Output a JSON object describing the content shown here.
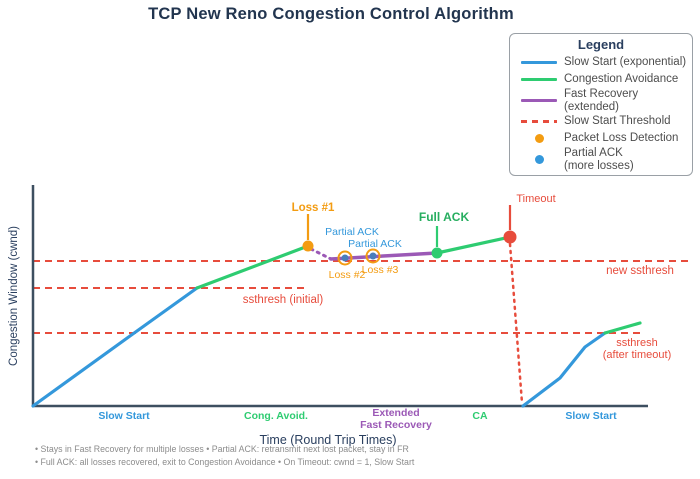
{
  "page": {
    "title": "TCP New Reno Congestion Control Algorithm"
  },
  "legend": {
    "title": "Legend",
    "items": [
      {
        "label": "Slow Start (exponential)",
        "swatch": "line",
        "color": "#3498db"
      },
      {
        "label": "Congestion Avoidance",
        "swatch": "line",
        "color": "#2ecc71"
      },
      {
        "label": "Fast Recovery (extended)",
        "swatch": "line",
        "color": "#9b59b6"
      },
      {
        "label": "Slow Start Threshold",
        "swatch": "dash",
        "color": "#e74c3c"
      },
      {
        "label": "Packet Loss Detection",
        "swatch": "dot",
        "color": "#f39c12"
      },
      {
        "label": "Partial ACK\n(more losses)",
        "swatch": "dot",
        "color": "#3498db"
      }
    ]
  },
  "footnotes": [
    "• Stays in Fast Recovery for multiple losses • Partial ACK: retransmit next lost packet, stay in FR",
    "• Full ACK: all losses recovered, exit to Congestion Avoidance • On Timeout: cwnd = 1, Slow Start"
  ],
  "chart_data": {
    "type": "line",
    "title": "TCP New Reno Congestion Control Algorithm",
    "xlabel": "Time (Round Trip Times)",
    "ylabel": "Congestion Window (cwnd)",
    "coord_space": "pixels, 700x479 canvas, y down; x axis at y=406, y axis at x=33",
    "axis_color": "#3d4f60",
    "x_axis": {
      "x1": 33,
      "x2": 648,
      "y": 406
    },
    "y_axis": {
      "x": 33,
      "y1": 185,
      "y2": 406
    },
    "series": [
      {
        "name": "slow-start-1",
        "color": "#3498db",
        "style": "solid",
        "width": 3.2,
        "points": [
          [
            33,
            406
          ],
          [
            130,
            336
          ],
          [
            197,
            288
          ]
        ]
      },
      {
        "name": "congestion-avoidance-1",
        "color": "#2ecc71",
        "style": "solid",
        "width": 3.2,
        "points": [
          [
            197,
            288
          ],
          [
            308,
            246
          ]
        ]
      },
      {
        "name": "fast-recovery-entry",
        "color": "#9b59b6",
        "style": "dotted",
        "width": 3,
        "points": [
          [
            311,
            249
          ],
          [
            331,
            259
          ]
        ]
      },
      {
        "name": "fast-recovery",
        "color": "#9b59b6",
        "style": "solid",
        "width": 3.5,
        "points": [
          [
            331,
            259
          ],
          [
            437,
            253
          ]
        ]
      },
      {
        "name": "congestion-avoidance-2",
        "color": "#2ecc71",
        "style": "solid",
        "width": 3.2,
        "points": [
          [
            437,
            253
          ],
          [
            510,
            237
          ]
        ]
      },
      {
        "name": "timeout-drop",
        "color": "#e74c3c",
        "style": "dotted",
        "width": 2.5,
        "points": [
          [
            510,
            244
          ],
          [
            522,
            403
          ]
        ]
      },
      {
        "name": "slow-start-2",
        "color": "#3498db",
        "style": "solid",
        "width": 3.2,
        "points": [
          [
            523,
            406
          ],
          [
            560,
            378
          ],
          [
            585,
            347
          ],
          [
            605,
            333
          ]
        ]
      },
      {
        "name": "congestion-avoidance-3",
        "color": "#2ecc71",
        "style": "solid",
        "width": 3.2,
        "points": [
          [
            605,
            333
          ],
          [
            640,
            323
          ]
        ]
      }
    ],
    "thresholds": [
      {
        "name": "new-ssthresh",
        "y": 261,
        "x1": 33,
        "x2": 692,
        "color": "#e74c3c",
        "label": "new ssthresh",
        "label_x": 640,
        "label_y": 274,
        "label_size": 11.5
      },
      {
        "name": "ssthresh-initial",
        "y": 288,
        "x1": 33,
        "x2": 305,
        "color": "#e74c3c",
        "label": "ssthresh (initial)",
        "label_x": 283,
        "label_y": 303,
        "label_size": 11.5
      },
      {
        "name": "ssthresh-after-timeout",
        "y": 333,
        "x1": 33,
        "x2": 645,
        "color": "#e74c3c",
        "label": "ssthresh\n(after timeout)",
        "label_x": 637,
        "label_y": 346,
        "label_size": 11
      }
    ],
    "markers": [
      {
        "name": "loss-1",
        "x": 308,
        "y": 246,
        "r": 5.5,
        "fill": "#f39c12",
        "ring": null,
        "stem": {
          "x": 308,
          "y1": 214,
          "y2": 240,
          "color": "#f39c12"
        },
        "label": "Loss #1",
        "label_x": 313,
        "label_y": 211,
        "label_color": "#f39c12",
        "bold": true,
        "label_size": 11.5
      },
      {
        "name": "partial-ack-1",
        "x": 345,
        "y": 258,
        "r": 3.5,
        "fill": "#4a7ebb",
        "ring": "#f39c12",
        "stem": null,
        "label": "Partial ACK",
        "label_x": 352,
        "label_y": 235,
        "label_color": "#3498db",
        "bold": false,
        "label_size": 10.5
      },
      {
        "name": "partial-ack-2",
        "x": 373,
        "y": 256,
        "r": 3.5,
        "fill": "#4a7ebb",
        "ring": "#f39c12",
        "stem": null,
        "label": "Partial ACK",
        "label_x": 375,
        "label_y": 247,
        "label_color": "#3498db",
        "bold": false,
        "label_size": 10.5
      },
      {
        "name": "full-ack",
        "x": 437,
        "y": 253,
        "r": 5.5,
        "fill": "#2ecc71",
        "ring": null,
        "stem": {
          "x": 437,
          "y1": 226,
          "y2": 247,
          "color": "#2ecc71"
        },
        "label": "Full ACK",
        "label_x": 444,
        "label_y": 221,
        "label_color": "#27ae60",
        "bold": true,
        "label_size": 12
      },
      {
        "name": "timeout",
        "x": 510,
        "y": 237,
        "r": 6.5,
        "fill": "#e74c3c",
        "ring": null,
        "stem": {
          "x": 510,
          "y1": 205,
          "y2": 230,
          "color": "#e74c3c"
        },
        "label": "Timeout",
        "label_x": 536,
        "label_y": 202,
        "label_color": "#e74c3c",
        "bold": false,
        "label_size": 11
      }
    ],
    "annotations": [
      {
        "name": "loss-2-label",
        "text": "Loss #2",
        "x": 347,
        "y": 278,
        "color": "#f39c12",
        "size": 10.5
      },
      {
        "name": "loss-3-label",
        "text": "Loss #3",
        "x": 380,
        "y": 273,
        "color": "#f39c12",
        "size": 10.5
      }
    ],
    "phase_labels": [
      {
        "name": "phase-slow-start-1",
        "text": "Slow Start",
        "x": 124,
        "y": 419,
        "color": "#3498db"
      },
      {
        "name": "phase-cong-avoid",
        "text": "Cong. Avoid.",
        "x": 276,
        "y": 419,
        "color": "#2ecc71"
      },
      {
        "name": "phase-extended-fast-recovery",
        "text": "Extended\nFast Recovery",
        "x": 396,
        "y": 416,
        "color": "#9b59b6"
      },
      {
        "name": "phase-ca",
        "text": "CA",
        "x": 480,
        "y": 419,
        "color": "#2ecc71"
      },
      {
        "name": "phase-slow-start-2",
        "text": "Slow Start",
        "x": 591,
        "y": 419,
        "color": "#3498db"
      }
    ],
    "axis_titles": {
      "x": {
        "x": 328,
        "y": 444,
        "size": 12.5,
        "color": "#2a3f5f"
      },
      "y": {
        "x": 17,
        "y": 296,
        "size": 11.5,
        "color": "#2a3f5f"
      }
    }
  }
}
